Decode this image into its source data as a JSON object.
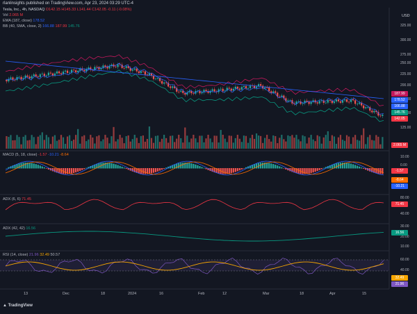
{
  "header": {
    "text": "rlanlinsights published on TradingView.com, Apr 23, 2024 03:29 UTC-4"
  },
  "symbol": {
    "name": "Tesla, Inc., 4h, NASDAQ",
    "open": "O142.15",
    "high": "H145.33",
    "low": "L141.44",
    "close": "C142.05",
    "change": "-0.11 (-0.08%)"
  },
  "legends": {
    "vol": {
      "label": "Vol",
      "value": "2.065 M"
    },
    "ema": {
      "label": "EMA (187, close)",
      "value": "178.52"
    },
    "bb": {
      "label": "BB (40, SMA, close, 2)",
      "v1": "166.88",
      "v2": "187.99",
      "v3": "145.76"
    },
    "macd": {
      "label": "MACD (5, 18, close)",
      "v1": "-1.57",
      "v2": "-10.21",
      "v3": "-8.64"
    },
    "adx1": {
      "label": "ADX (6, 6)",
      "value": "71.45"
    },
    "adx2": {
      "label": "ADX (42, 42)",
      "value": "16.56"
    },
    "rsi": {
      "label": "RSI (14, close)",
      "v1": "21.96",
      "v2": "32.49",
      "v3": "50.57"
    }
  },
  "currency": "USD",
  "price_ticks": [
    "325.00",
    "300.00",
    "275.00",
    "250.00",
    "225.00",
    "200.00",
    "175.00",
    "150.00",
    "125.00"
  ],
  "price_tags": [
    {
      "text": "187.99",
      "color": "#c2185b"
    },
    {
      "text": "178.52",
      "color": "#2962ff"
    },
    {
      "text": "166.88",
      "color": "#2962ff"
    },
    {
      "text": "145.76",
      "color": "#089981"
    },
    {
      "text": "142.05",
      "color": "#f23645"
    },
    {
      "text": "2.065 M",
      "color": "#f23645"
    }
  ],
  "macd_ticks": [
    "10.00",
    "0.00"
  ],
  "macd_tags": [
    {
      "text": "-1.57",
      "color": "#f23645"
    },
    {
      "text": "-8.64",
      "color": "#ff6d00"
    },
    {
      "text": "-10.21",
      "color": "#2962ff"
    }
  ],
  "adx1_ticks": [
    "80.00",
    "40.00"
  ],
  "adx1_tag": {
    "text": "71.45",
    "color": "#f23645"
  },
  "adx2_ticks": [
    "30.00",
    "20.00",
    "10.00"
  ],
  "adx2_tag": {
    "text": "16.56",
    "color": "#089981"
  },
  "rsi_ticks": [
    "60.00",
    "40.00"
  ],
  "rsi_tags": [
    {
      "text": "32.49",
      "color": "#f7a600"
    },
    {
      "text": "21.96",
      "color": "#7e57c2"
    }
  ],
  "x_labels": [
    "13",
    "Dec",
    "18",
    "2024",
    "16",
    "Feb",
    "12",
    "Mar",
    "18",
    "Apr",
    "15"
  ],
  "brand": "TradingView",
  "colors": {
    "up": "#26a69a",
    "down": "#ef5350",
    "bg": "#131722"
  }
}
